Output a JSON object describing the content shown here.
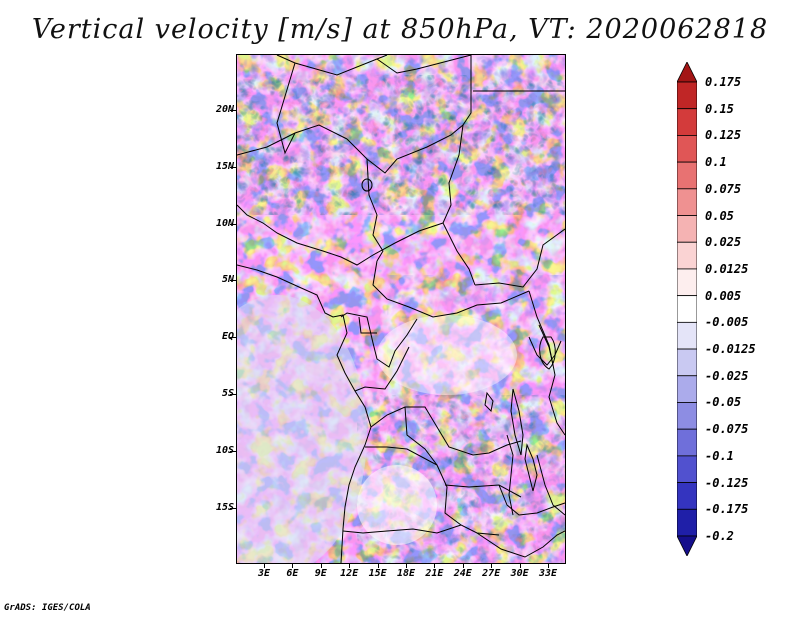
{
  "title": "Vertical velocity [m/s] at 850hPa, VT: 2020062818",
  "footer": "GrADS: IGES/COLA",
  "lat_labels": [
    "20N",
    "15N",
    "10N",
    "5N",
    "EQ",
    "5S",
    "10S",
    "15S"
  ],
  "lon_labels": [
    "3E",
    "6E",
    "9E",
    "12E",
    "15E",
    "18E",
    "21E",
    "24E",
    "27E",
    "30E",
    "33E"
  ],
  "colorbar": {
    "levels": [
      "0.175",
      "0.15",
      "0.125",
      "0.1",
      "0.075",
      "0.05",
      "0.025",
      "0.0125",
      "0.005",
      "-0.005",
      "-0.0125",
      "-0.025",
      "-0.05",
      "-0.075",
      "-0.1",
      "-0.125",
      "-0.175",
      "-0.2"
    ],
    "colors": [
      "#a31515",
      "#c02626",
      "#d33b3b",
      "#e05656",
      "#e87272",
      "#ef9191",
      "#f5b3b3",
      "#fad3d3",
      "#fdeeee",
      "#ffffff",
      "#e4e4f8",
      "#c9c9f2",
      "#ababeb",
      "#8d8de3",
      "#6f6fda",
      "#5151cf",
      "#3434bf",
      "#1f1fa8",
      "#150f8c"
    ],
    "arrow_top_color": "#a31515",
    "arrow_bottom_color": "#150f8c"
  }
}
